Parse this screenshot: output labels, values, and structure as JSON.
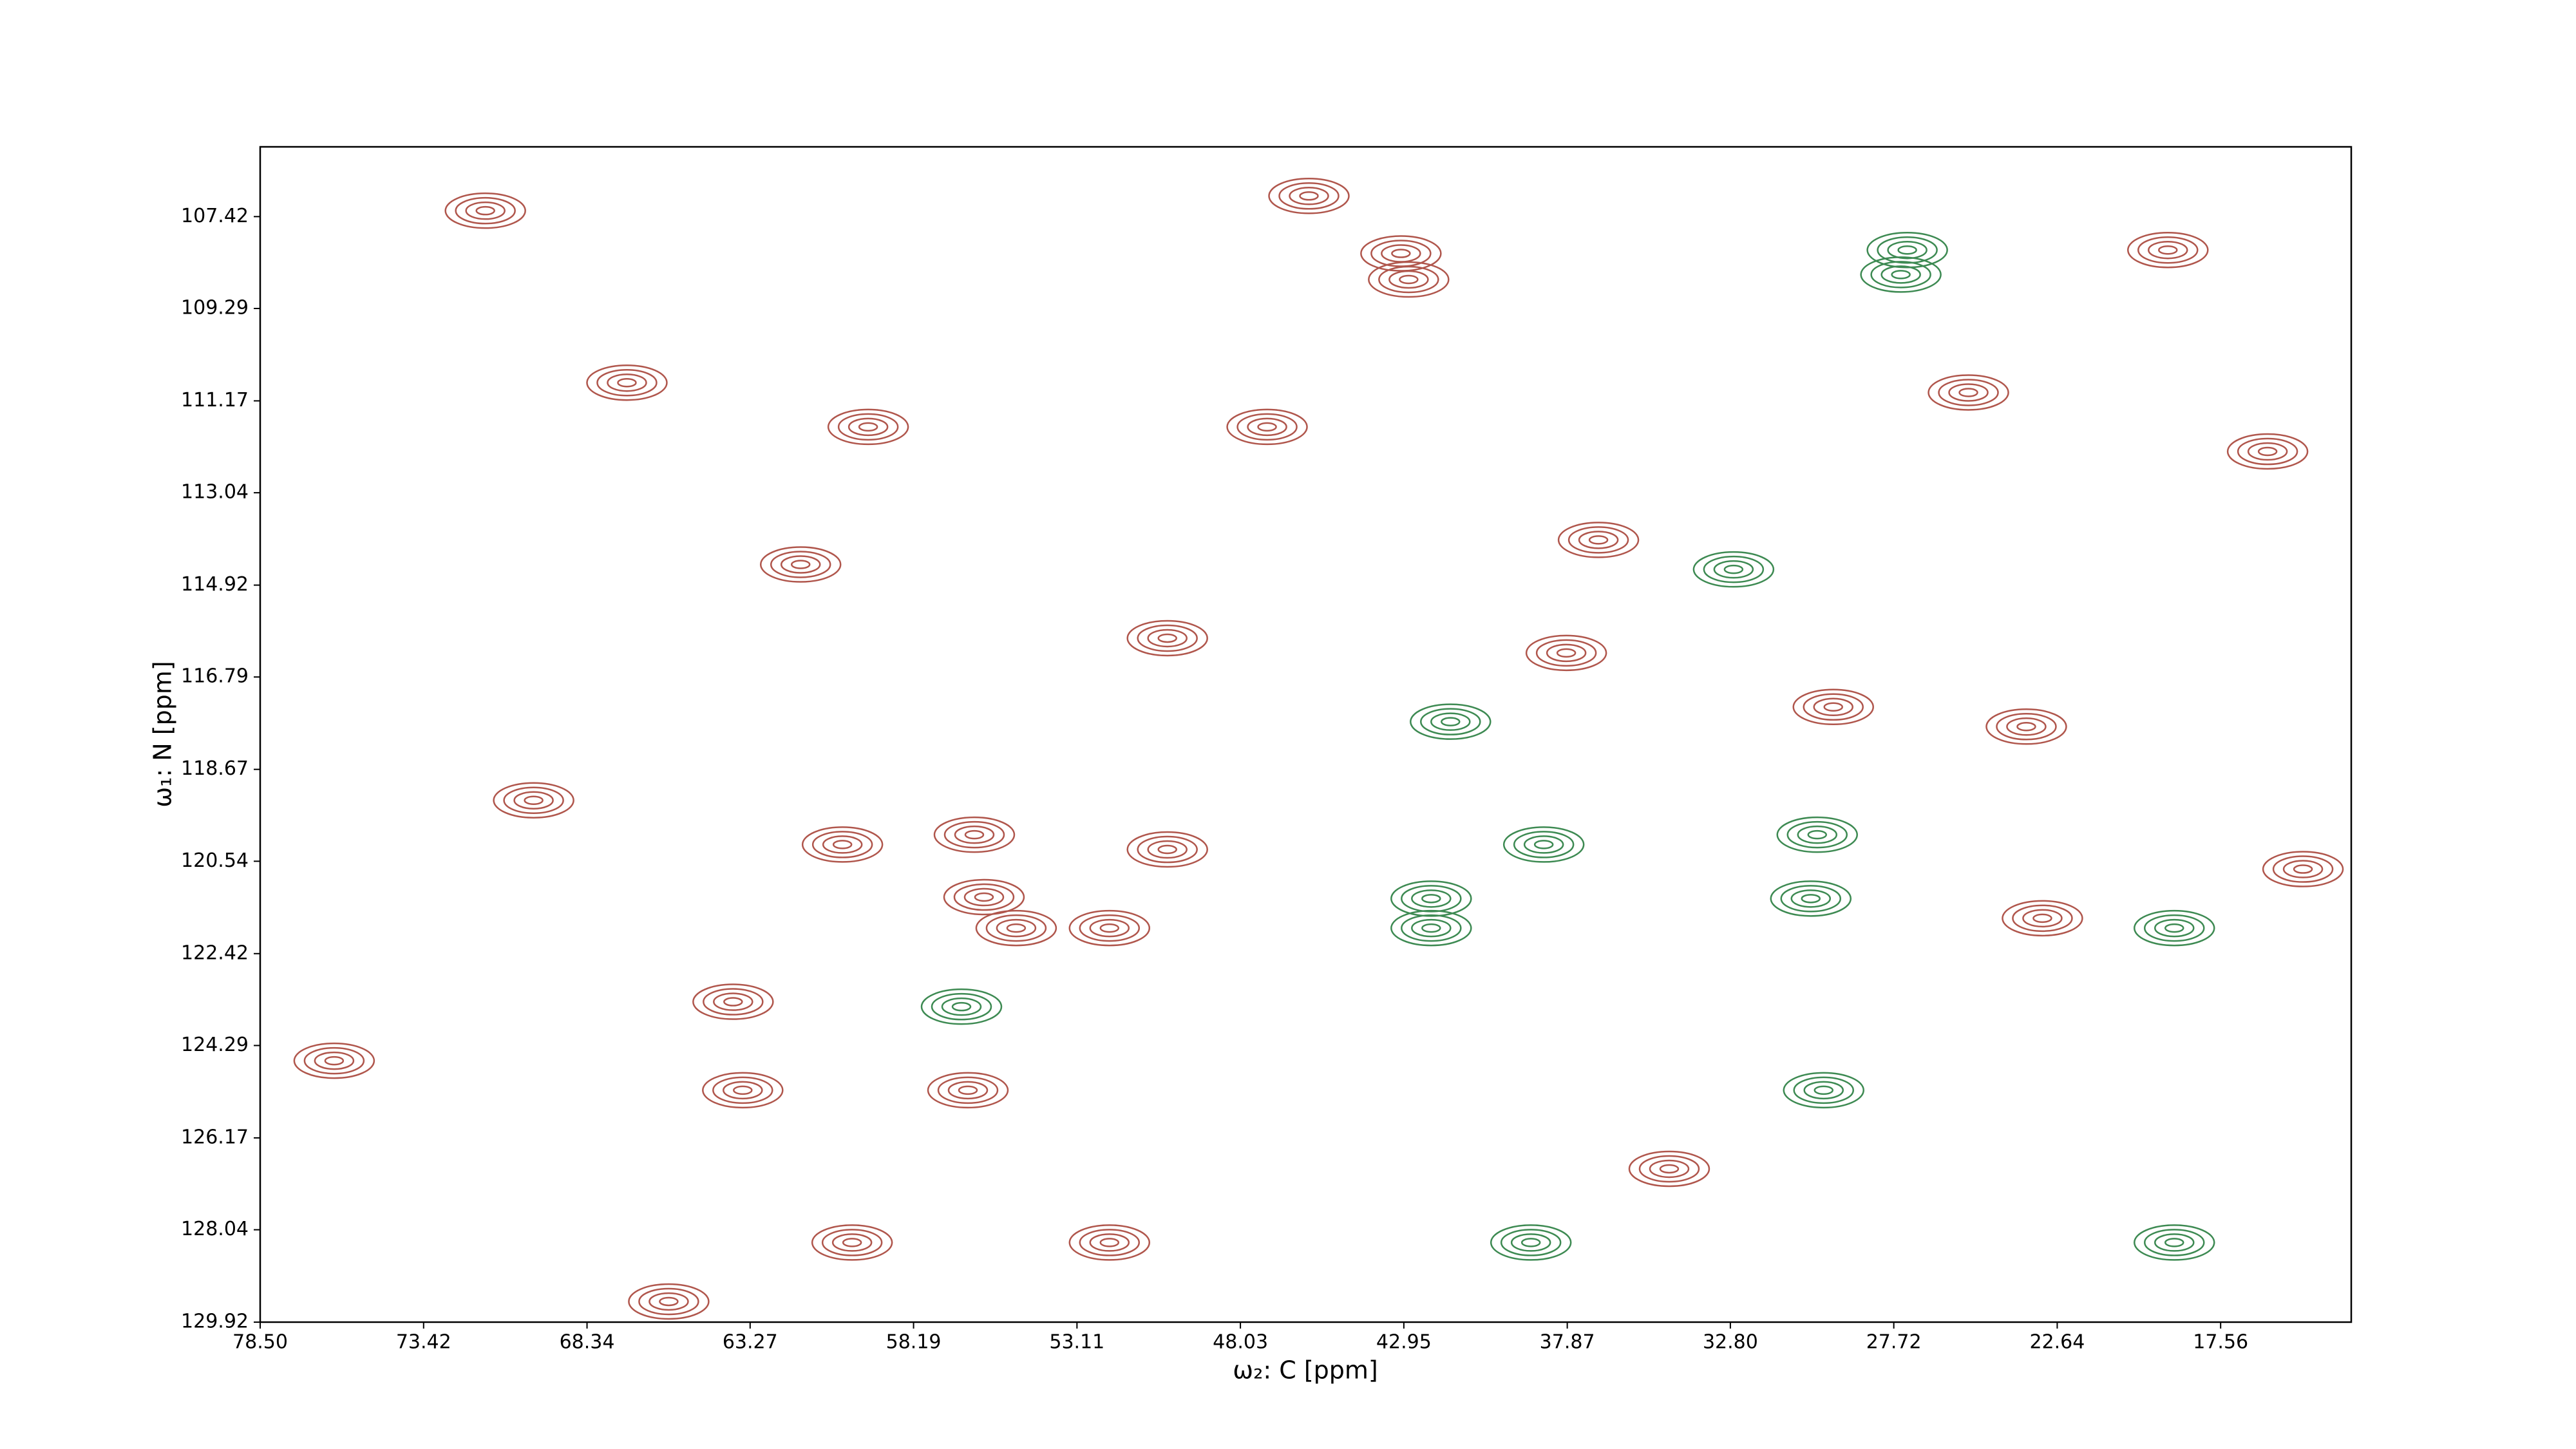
{
  "chart_data": {
    "type": "contour",
    "x_label": "ω₂: C [ppm]",
    "y_label": "ω₁: N [ppm]",
    "xlim": [
      78.5,
      13.5
    ],
    "ylim": [
      129.92,
      106.0
    ],
    "xticks": [
      {
        "value": 78.5,
        "label": "78.50"
      },
      73.42,
      68.34,
      63.27,
      58.19,
      53.11,
      48.03,
      {
        "value": 42.95,
        "label": "42.95"
      },
      37.87,
      {
        "value": 32.8,
        "label": "32.80"
      },
      27.72,
      22.64,
      17.56
    ],
    "yticks": [
      107.42,
      109.29,
      111.17,
      113.04,
      114.92,
      116.79,
      118.67,
      120.54,
      122.42,
      124.29,
      126.17,
      128.04,
      129.92
    ],
    "series": [
      {
        "color": "#b0564c",
        "x": [
          43.04,
          42.8,
          56.0,
          55.0,
          52.1,
          60.4,
          56.5,
          52.1,
          60.1,
          61.7,
          45.9,
          23.6,
          63.5,
          76.2,
          19.2,
          67.1,
          56.3,
          23.1,
          71.5,
          63.8,
          50.3,
          37.9,
          16.1,
          34.7,
          47.2,
          25.4,
          70.0,
          29.6,
          65.8,
          15.0,
          50.3,
          59.6,
          36.9
        ],
        "y": [
          108.17,
          108.7,
          121.27,
          121.9,
          121.9,
          120.2,
          125.2,
          128.3,
          128.3,
          114.5,
          107.0,
          117.8,
          125.2,
          124.6,
          108.1,
          110.8,
          120.0,
          121.7,
          107.3,
          123.4,
          116.0,
          116.3,
          112.2,
          126.8,
          111.7,
          111.0,
          119.3,
          117.4,
          129.5,
          120.7,
          120.3,
          111.7,
          114.0
        ]
      },
      {
        "color": "#3d8a52",
        "x": [
          27.3,
          27.5,
          42.1,
          42.1,
          38.6,
          30.3,
          29.9,
          19.0,
          19.0,
          41.5,
          30.1,
          32.7,
          39.0,
          56.7
        ],
        "y": [
          108.1,
          108.6,
          121.3,
          121.9,
          120.2,
          121.3,
          125.2,
          128.3,
          121.9,
          117.7,
          120.0,
          114.6,
          128.3,
          123.5
        ]
      }
    ]
  }
}
